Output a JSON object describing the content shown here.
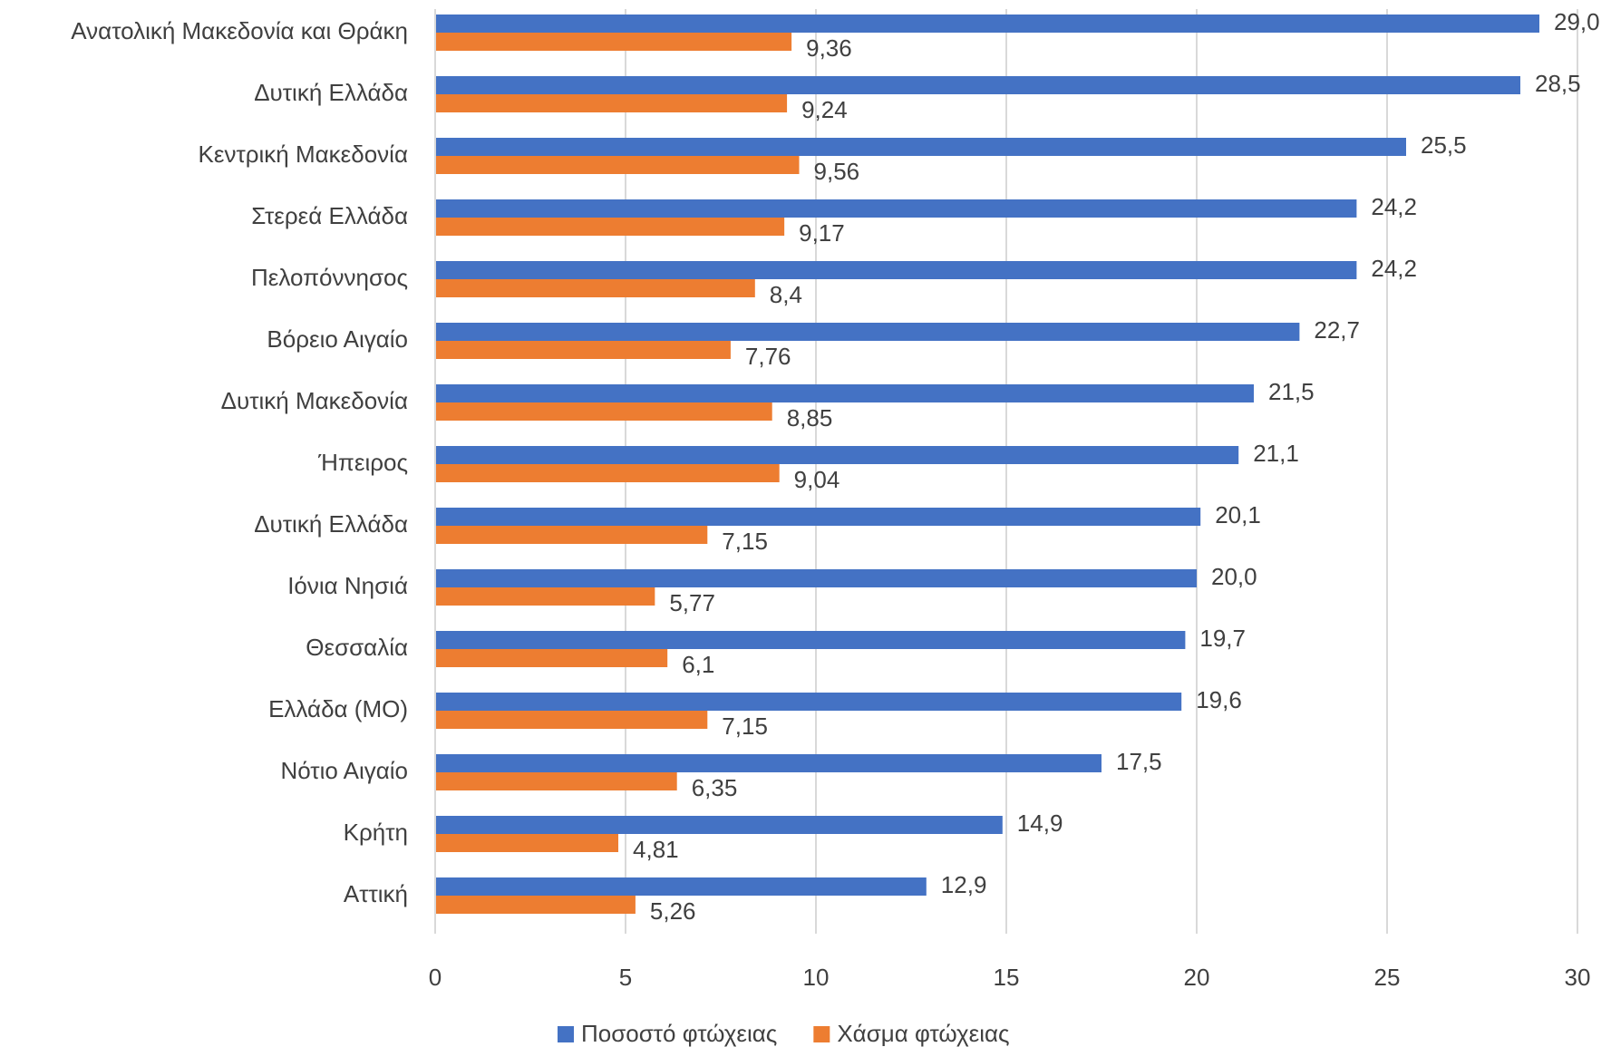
{
  "chart_data": {
    "type": "hbar",
    "categories": [
      "Ανατολική Μακεδονία και Θράκη",
      "Δυτική Ελλάδα",
      "Κεντρική Μακεδονία",
      "Στερεά Ελλάδα",
      "Πελοπόννησος",
      "Βόρειο Αιγαίο",
      "Δυτική Μακεδονία",
      "Ήπειρος",
      "Δυτική Ελλάδα",
      "Ιόνια Νησιά",
      "Θεσσαλία",
      "Ελλάδα (ΜΟ)",
      "Νότιο Αιγαίο",
      "Κρήτη",
      "Αττική"
    ],
    "series": [
      {
        "name": "Ποσοστό φτώχειας",
        "color": "#4472c4",
        "values": [
          29.0,
          28.5,
          25.5,
          24.2,
          24.2,
          22.7,
          21.5,
          21.1,
          20.1,
          20.0,
          19.7,
          19.6,
          17.5,
          14.9,
          12.9
        ],
        "value_labels": [
          "29,0",
          "28,5",
          "25,5",
          "24,2",
          "24,2",
          "22,7",
          "21,5",
          "21,1",
          "20,1",
          "20,0",
          "19,7",
          "19,6",
          "17,5",
          "14,9",
          "12,9"
        ]
      },
      {
        "name": "Χάσμα φτώχειας",
        "color": "#ed7d31",
        "values": [
          9.36,
          9.24,
          9.56,
          9.17,
          8.4,
          7.76,
          8.85,
          9.04,
          7.15,
          5.77,
          6.1,
          7.15,
          6.35,
          4.81,
          5.26
        ],
        "value_labels": [
          "9,36",
          "9,24",
          "9,56",
          "9,17",
          "8,4",
          "7,76",
          "8,85",
          "9,04",
          "7,15",
          "5,77",
          "6,1",
          "7,15",
          "6,35",
          "4,81",
          "5,26"
        ]
      }
    ],
    "xlim": [
      0,
      30
    ],
    "xticks": [
      0,
      5,
      10,
      15,
      20,
      25,
      30
    ],
    "grid": true,
    "legend": "bottom"
  }
}
